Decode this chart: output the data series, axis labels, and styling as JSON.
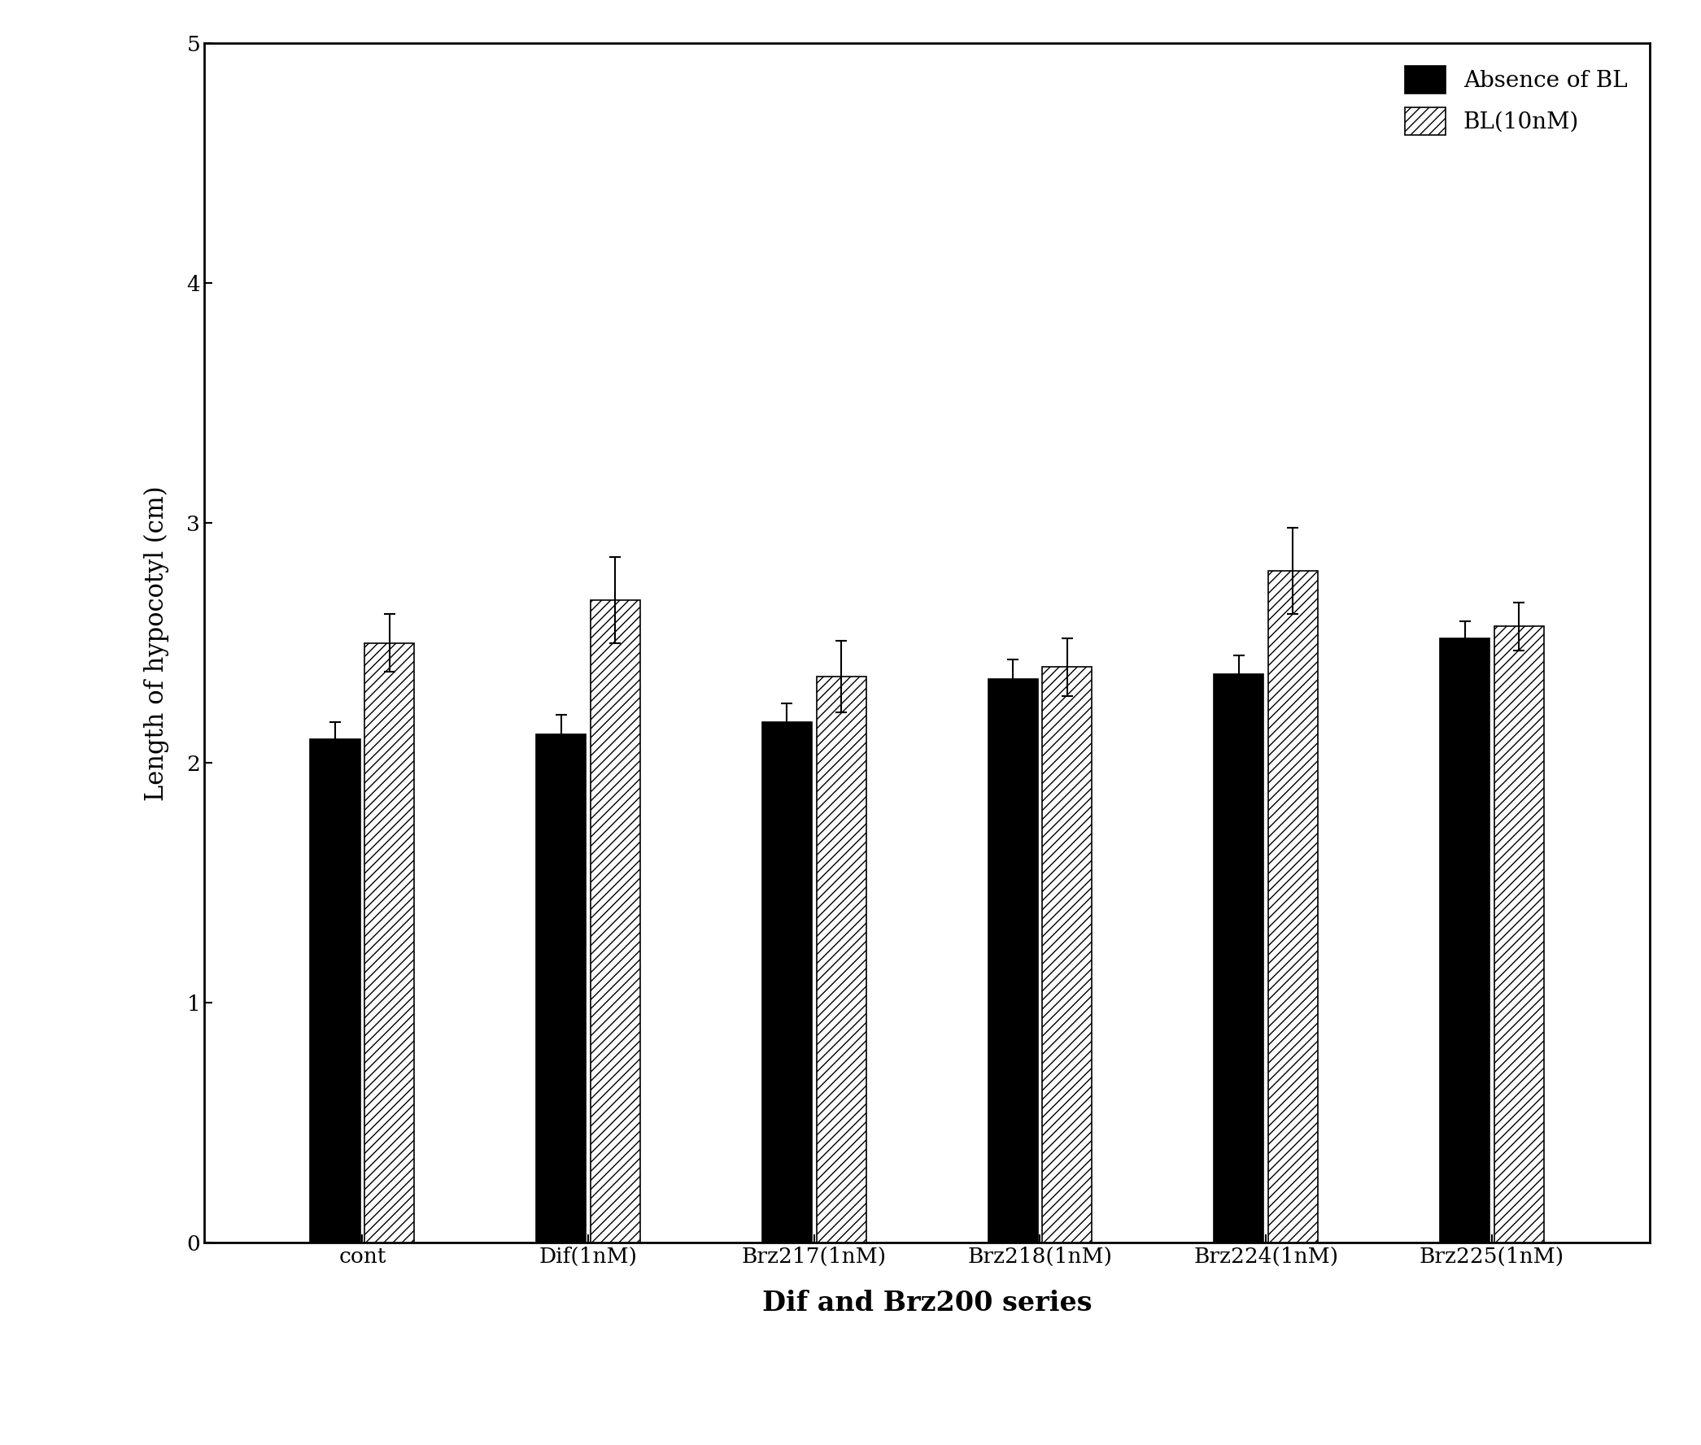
{
  "categories": [
    "cont",
    "Dif(1nM)",
    "Brz217(1nM)",
    "Brz218(1nM)",
    "Brz224(1nM)",
    "Brz225(1nM)"
  ],
  "absence_bl": [
    2.1,
    2.12,
    2.17,
    2.35,
    2.37,
    2.52
  ],
  "presence_bl": [
    2.5,
    2.68,
    2.36,
    2.4,
    2.8,
    2.57
  ],
  "absence_err": [
    0.07,
    0.08,
    0.08,
    0.08,
    0.08,
    0.07
  ],
  "presence_err": [
    0.12,
    0.18,
    0.15,
    0.12,
    0.18,
    0.1
  ],
  "ylabel": "Length of hypocotyl (cm)",
  "xlabel": "Dif and Brz200 series",
  "ylim": [
    0,
    5
  ],
  "yticks": [
    0,
    1,
    2,
    3,
    4,
    5
  ],
  "legend_absence": "Absence of BL",
  "legend_presence": "BL(10nM)",
  "bar_width": 0.22,
  "absence_color": "#000000",
  "presence_hatch": "///",
  "presence_facecolor": "#ffffff",
  "presence_edgecolor": "#000000",
  "background_color": "#ffffff",
  "label_fontsize": 22,
  "tick_fontsize": 19,
  "legend_fontsize": 20,
  "xlabel_fontsize": 24
}
